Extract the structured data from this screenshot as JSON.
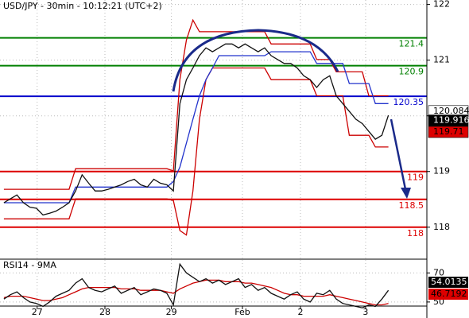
{
  "chart_data": [
    {
      "type": "line",
      "title": "USD/JPY - 30min - 10:12:21 (UTC+2)",
      "x": [
        0,
        1,
        2,
        3,
        4,
        5,
        6,
        7,
        8,
        9,
        10,
        11,
        12,
        13,
        14,
        15,
        16,
        17,
        18,
        19,
        20,
        21,
        22,
        23,
        24,
        25,
        26,
        27,
        28,
        29,
        30,
        31,
        32,
        33,
        34,
        35,
        36,
        37,
        38,
        39,
        40,
        41,
        42,
        43,
        44,
        45,
        46,
        47,
        48,
        49,
        50,
        51,
        52,
        53,
        54,
        55,
        56,
        57,
        58,
        59
      ],
      "xlim": [
        -0.6,
        64.9
      ],
      "xticks": [
        {
          "value": 5.1,
          "label": "27"
        },
        {
          "value": 15.5,
          "label": "28"
        },
        {
          "value": 25.7,
          "label": "29"
        },
        {
          "value": 36.6,
          "label": "Feb"
        },
        {
          "value": 45.5,
          "label": "2"
        },
        {
          "value": 55.5,
          "label": "3"
        }
      ],
      "ylim": [
        117.44,
        122.08
      ],
      "yticks": [
        118,
        119,
        120,
        121,
        122
      ],
      "grid": true,
      "series": [
        {
          "color": "#cc0000",
          "values": [
            118.68,
            118.68,
            118.68,
            118.68,
            118.68,
            118.68,
            118.68,
            118.68,
            118.68,
            118.68,
            118.68,
            119.05,
            119.05,
            119.05,
            119.05,
            119.05,
            119.05,
            119.05,
            119.05,
            119.05,
            119.05,
            119.05,
            119.05,
            119.05,
            119.05,
            119.05,
            119.01,
            120.65,
            121.36,
            121.72,
            121.51,
            121.51,
            121.51,
            121.51,
            121.51,
            121.51,
            121.51,
            121.51,
            121.51,
            121.51,
            121.51,
            121.29,
            121.29,
            121.29,
            121.29,
            121.29,
            121.29,
            121.29,
            121.01,
            121.01,
            121.01,
            120.79,
            120.79,
            120.79,
            120.79,
            120.79,
            120.36,
            120.36,
            120.36,
            120.36
          ]
        },
        {
          "color": "#cc0000",
          "values": [
            118.15,
            118.15,
            118.15,
            118.15,
            118.15,
            118.15,
            118.15,
            118.15,
            118.15,
            118.15,
            118.15,
            118.51,
            118.51,
            118.51,
            118.51,
            118.51,
            118.51,
            118.51,
            118.51,
            118.51,
            118.51,
            118.51,
            118.51,
            118.51,
            118.51,
            118.51,
            118.48,
            117.94,
            117.86,
            118.65,
            119.94,
            120.65,
            120.86,
            120.86,
            120.86,
            120.86,
            120.86,
            120.86,
            120.86,
            120.86,
            120.86,
            120.65,
            120.65,
            120.65,
            120.65,
            120.65,
            120.65,
            120.65,
            120.36,
            120.36,
            120.36,
            120.36,
            120.36,
            119.65,
            119.65,
            119.65,
            119.65,
            119.44,
            119.44,
            119.44
          ]
        },
        {
          "color": "#2233cc",
          "values": [
            118.44,
            118.44,
            118.44,
            118.44,
            118.44,
            118.44,
            118.44,
            118.44,
            118.44,
            118.44,
            118.44,
            118.72,
            118.72,
            118.72,
            118.72,
            118.72,
            118.72,
            118.72,
            118.72,
            118.72,
            118.72,
            118.72,
            118.72,
            118.72,
            118.72,
            118.72,
            118.82,
            119.08,
            119.51,
            119.94,
            120.36,
            120.65,
            120.86,
            121.08,
            121.08,
            121.08,
            121.08,
            121.08,
            121.08,
            121.08,
            121.08,
            121.15,
            121.15,
            121.15,
            121.15,
            121.15,
            121.15,
            121.15,
            120.94,
            120.94,
            120.94,
            120.94,
            120.94,
            120.58,
            120.58,
            120.58,
            120.58,
            120.22,
            120.22,
            120.22
          ]
        },
        {
          "color": "#111111",
          "values": [
            118.44,
            118.51,
            118.58,
            118.44,
            118.36,
            118.34,
            118.22,
            118.25,
            118.29,
            118.36,
            118.44,
            118.65,
            118.94,
            118.79,
            118.65,
            118.65,
            118.68,
            118.72,
            118.76,
            118.82,
            118.86,
            118.76,
            118.72,
            118.86,
            118.79,
            118.76,
            118.65,
            120.22,
            120.65,
            120.86,
            121.08,
            121.22,
            121.15,
            121.22,
            121.29,
            121.29,
            121.22,
            121.29,
            121.22,
            121.15,
            121.22,
            121.08,
            121.01,
            120.94,
            120.94,
            120.86,
            120.72,
            120.65,
            120.51,
            120.65,
            120.72,
            120.36,
            120.22,
            120.08,
            119.94,
            119.86,
            119.72,
            119.58,
            119.65,
            120.01
          ]
        }
      ],
      "levels": [
        {
          "value": 121.4,
          "color": "#008000"
        },
        {
          "value": 120.9,
          "color": "#008000"
        },
        {
          "value": 120.35,
          "color": "#0000cc"
        },
        {
          "value": 119,
          "color": "#dd0000"
        },
        {
          "value": 118.5,
          "color": "#dd0000"
        },
        {
          "value": 118,
          "color": "#dd0000"
        }
      ],
      "price_labels": [
        {
          "value": 120.084,
          "color": "#ffffff",
          "text_color": "#000000"
        },
        {
          "value": 119.916,
          "color": "#000000",
          "text_color": "#ffffff"
        },
        {
          "value": 119.71,
          "color": "#dd0000",
          "text_color": "#000000"
        }
      ]
    },
    {
      "type": "line",
      "title": "RSI14 - 9MA",
      "x": [
        0,
        1,
        2,
        3,
        4,
        5,
        6,
        7,
        8,
        9,
        10,
        11,
        12,
        13,
        14,
        15,
        16,
        17,
        18,
        19,
        20,
        21,
        22,
        23,
        24,
        25,
        26,
        27,
        28,
        29,
        30,
        31,
        32,
        33,
        34,
        35,
        36,
        37,
        38,
        39,
        40,
        41,
        42,
        43,
        44,
        45,
        46,
        47,
        48,
        49,
        50,
        51,
        52,
        53,
        54,
        55,
        56,
        57,
        58,
        59
      ],
      "xlim": [
        -0.6,
        64.9
      ],
      "ylim": [
        47.2,
        78.9
      ],
      "yticks": [
        50,
        70
      ],
      "series": [
        {
          "color": "#cc0000",
          "values": [
            53,
            54,
            54,
            54,
            53,
            52,
            51,
            51,
            52,
            53,
            55,
            57,
            59,
            60,
            60,
            60,
            60,
            60,
            59,
            59,
            59,
            58,
            58,
            58,
            58,
            57,
            56,
            59,
            61,
            63,
            64,
            65,
            65,
            65,
            64,
            64,
            64,
            63,
            63,
            62,
            61,
            60,
            58,
            56,
            55,
            55,
            54,
            54,
            54,
            54,
            55,
            54,
            53,
            52,
            51,
            50,
            49,
            48,
            48,
            49
          ]
        },
        {
          "color": "#111111",
          "values": [
            52,
            55,
            57,
            53,
            50,
            49,
            47,
            50,
            54,
            56,
            58,
            63,
            66,
            60,
            58,
            57,
            59,
            61,
            56,
            58,
            60,
            55,
            57,
            59,
            58,
            56,
            48,
            76,
            70,
            67,
            64,
            66,
            63,
            65,
            62,
            64,
            66,
            60,
            62,
            58,
            60,
            56,
            54,
            52,
            55,
            57,
            52,
            50,
            56,
            55,
            58,
            52,
            49,
            48,
            47,
            46,
            48,
            47,
            52,
            58
          ]
        }
      ],
      "badges": [
        {
          "value": 54.0135,
          "color": "#000000",
          "text_color": "#ffffff"
        },
        {
          "value": 46.7192,
          "color": "#dd0000",
          "text_color": "#000000"
        }
      ]
    }
  ]
}
